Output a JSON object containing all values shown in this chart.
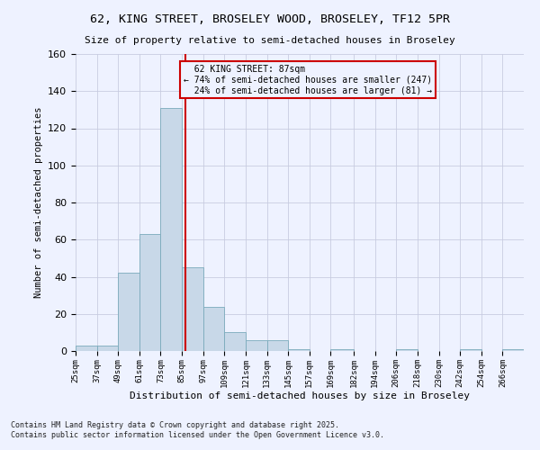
{
  "title_line1": "62, KING STREET, BROSELEY WOOD, BROSELEY, TF12 5PR",
  "title_line2": "Size of property relative to semi-detached houses in Broseley",
  "xlabel": "Distribution of semi-detached houses by size in Broseley",
  "ylabel": "Number of semi-detached properties",
  "bin_labels": [
    "25sqm",
    "37sqm",
    "49sqm",
    "61sqm",
    "73sqm",
    "85sqm",
    "97sqm",
    "109sqm",
    "121sqm",
    "133sqm",
    "145sqm",
    "157sqm",
    "169sqm",
    "182sqm",
    "194sqm",
    "206sqm",
    "218sqm",
    "230sqm",
    "242sqm",
    "254sqm",
    "266sqm"
  ],
  "bin_edges": [
    25,
    37,
    49,
    61,
    73,
    85,
    97,
    109,
    121,
    133,
    145,
    157,
    169,
    182,
    194,
    206,
    218,
    230,
    242,
    254,
    266,
    278
  ],
  "bar_heights": [
    3,
    3,
    42,
    63,
    131,
    45,
    24,
    10,
    6,
    6,
    1,
    0,
    1,
    0,
    0,
    1,
    0,
    0,
    1,
    0,
    1
  ],
  "bar_color": "#c8d8e8",
  "bar_edge_color": "#7aaabb",
  "property_size": 87,
  "property_label": "62 KING STREET: 87sqm",
  "pct_smaller": 74,
  "n_smaller": 247,
  "pct_larger": 24,
  "n_larger": 81,
  "vline_color": "#cc0000",
  "annotation_box_color": "#cc0000",
  "ylim": [
    0,
    160
  ],
  "yticks": [
    0,
    20,
    40,
    60,
    80,
    100,
    120,
    140,
    160
  ],
  "bg_color": "#eef2ff",
  "grid_color": "#c8cce0",
  "footer_line1": "Contains HM Land Registry data © Crown copyright and database right 2025.",
  "footer_line2": "Contains public sector information licensed under the Open Government Licence v3.0."
}
